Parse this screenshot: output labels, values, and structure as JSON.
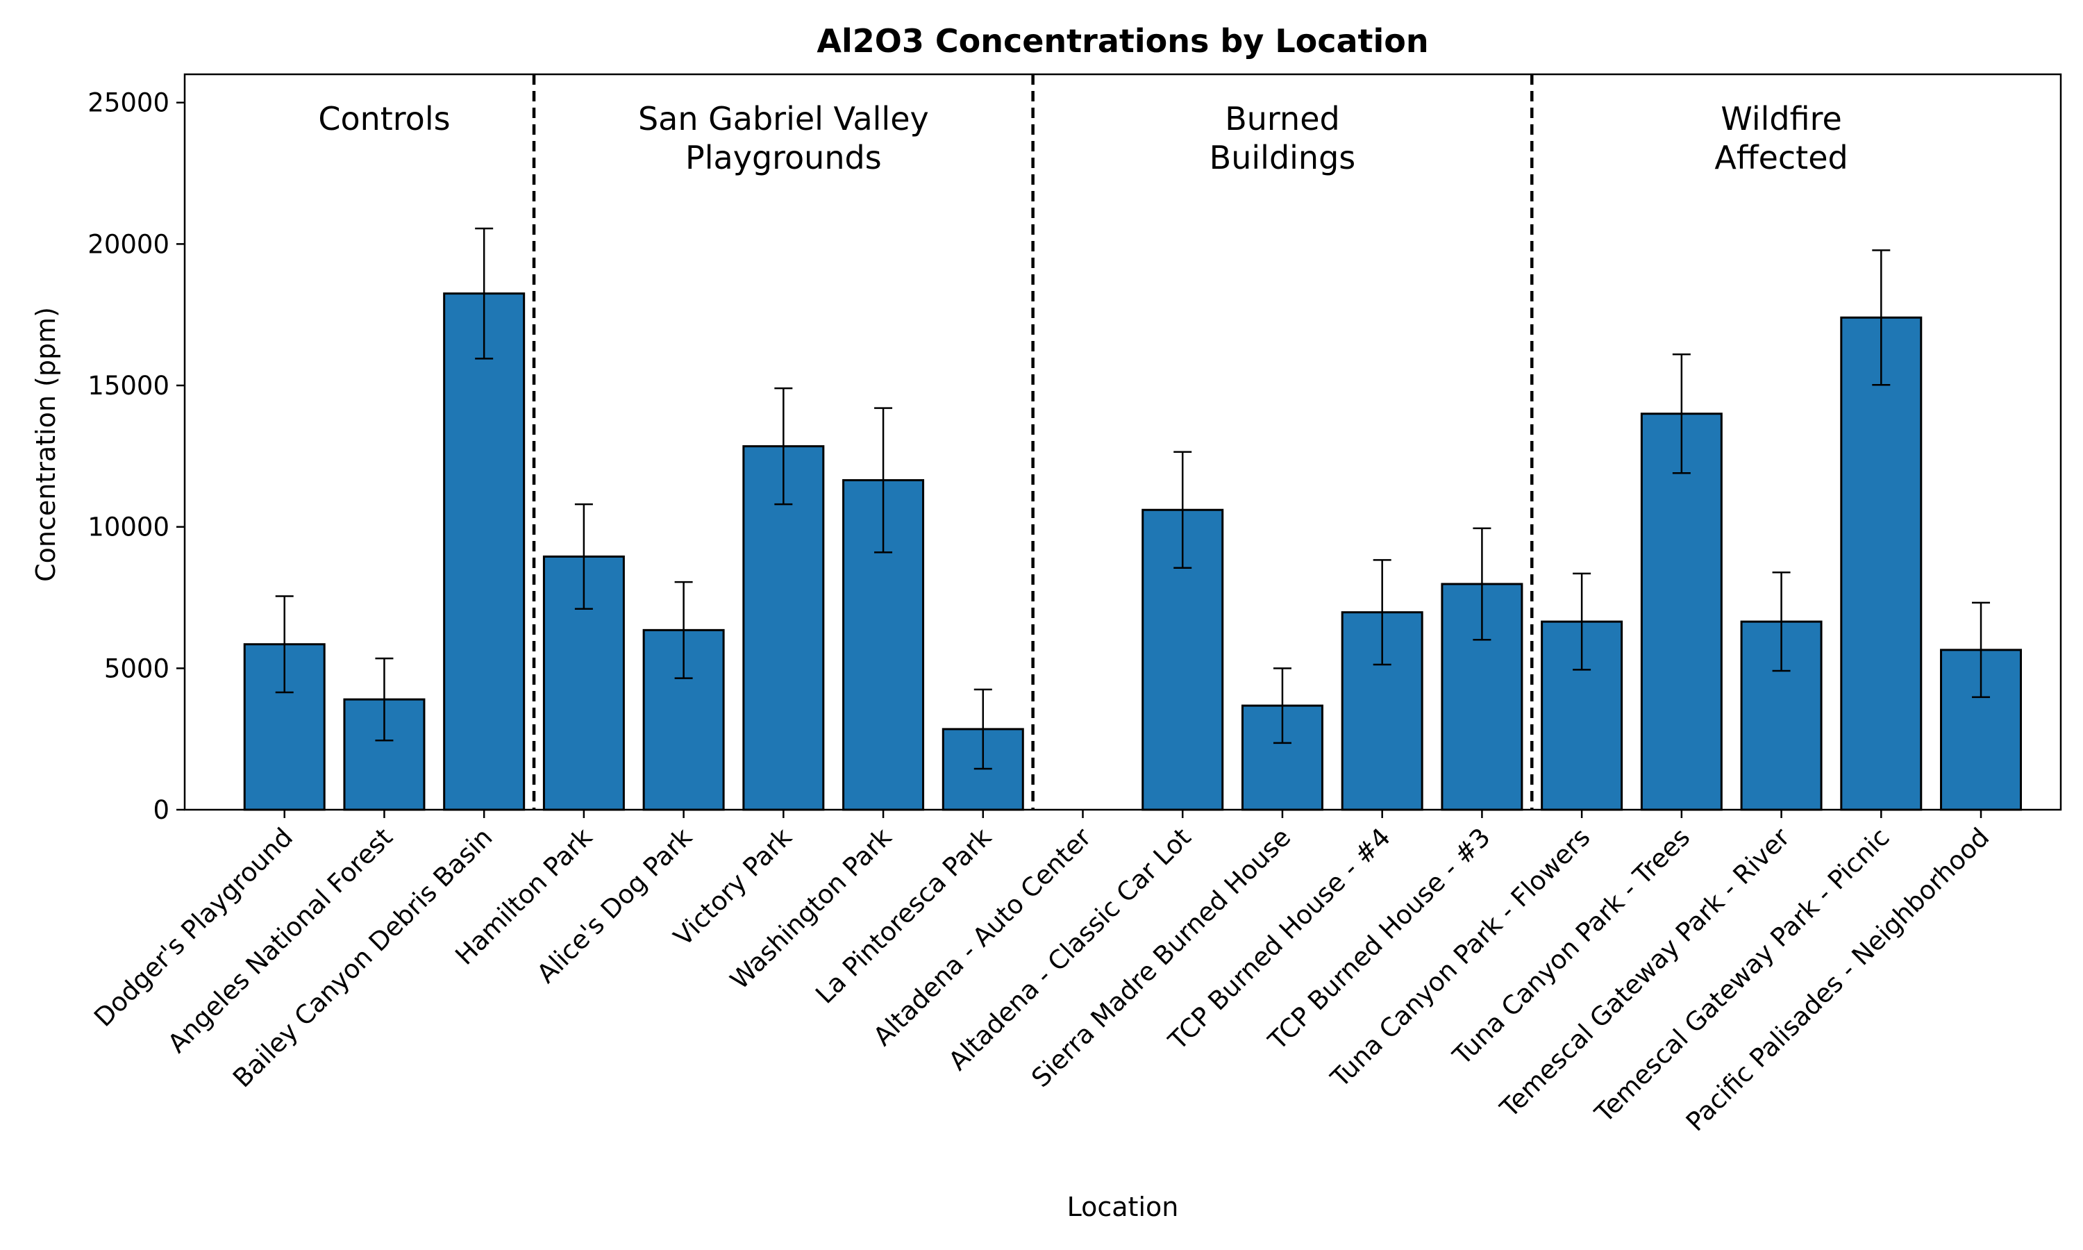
{
  "chart_data": {
    "type": "bar",
    "title": "Al2O3 Concentrations by Location",
    "xlabel": "Location",
    "ylabel": "Concentration (ppm)",
    "ylim": [
      0,
      26000
    ],
    "yticks": [
      0,
      5000,
      10000,
      15000,
      20000,
      25000
    ],
    "ytick_labels": [
      "0",
      "5000",
      "10000",
      "15000",
      "20000",
      "25000"
    ],
    "grid": false,
    "bar_color": "#1f77b4",
    "edge_color": "#000000",
    "categories": [
      "Dodger's Playground",
      "Angeles National Forest",
      "Bailey Canyon Debris Basin",
      "Hamilton Park",
      "Alice's Dog Park",
      "Victory Park",
      "Washington Park",
      "La Pintoresca Park",
      "Altadena - Auto Center",
      "Altadena - Classic Car Lot",
      "Sierra Madre Burned House",
      "TCP Burned House - #4",
      "TCP Burned House - #3",
      "Tuna Canyon Park - Flowers",
      "Tuna Canyon Park - Trees",
      "Temescal Gateway Park - River",
      "Temescal Gateway Park - Picnic",
      "Pacific Palisades - Neighborhood"
    ],
    "values": [
      5850,
      3900,
      18250,
      8950,
      6350,
      12850,
      11650,
      2850,
      null,
      10600,
      3680,
      6980,
      7980,
      6650,
      14000,
      6650,
      17400,
      5650
    ],
    "errors": [
      1700,
      1450,
      2300,
      1850,
      1700,
      2050,
      2550,
      1400,
      null,
      2050,
      1320,
      1850,
      1970,
      1700,
      2100,
      1740,
      2380,
      1670
    ],
    "groups": [
      {
        "label_lines": [
          "Controls"
        ],
        "start": 0,
        "end": 2
      },
      {
        "label_lines": [
          "San Gabriel Valley",
          "Playgrounds"
        ],
        "start": 3,
        "end": 7
      },
      {
        "label_lines": [
          "Burned",
          "Buildings"
        ],
        "start": 8,
        "end": 12
      },
      {
        "label_lines": [
          "Wildfire",
          "Affected"
        ],
        "start": 13,
        "end": 17
      }
    ],
    "separators_after": [
      2,
      7,
      12
    ]
  }
}
